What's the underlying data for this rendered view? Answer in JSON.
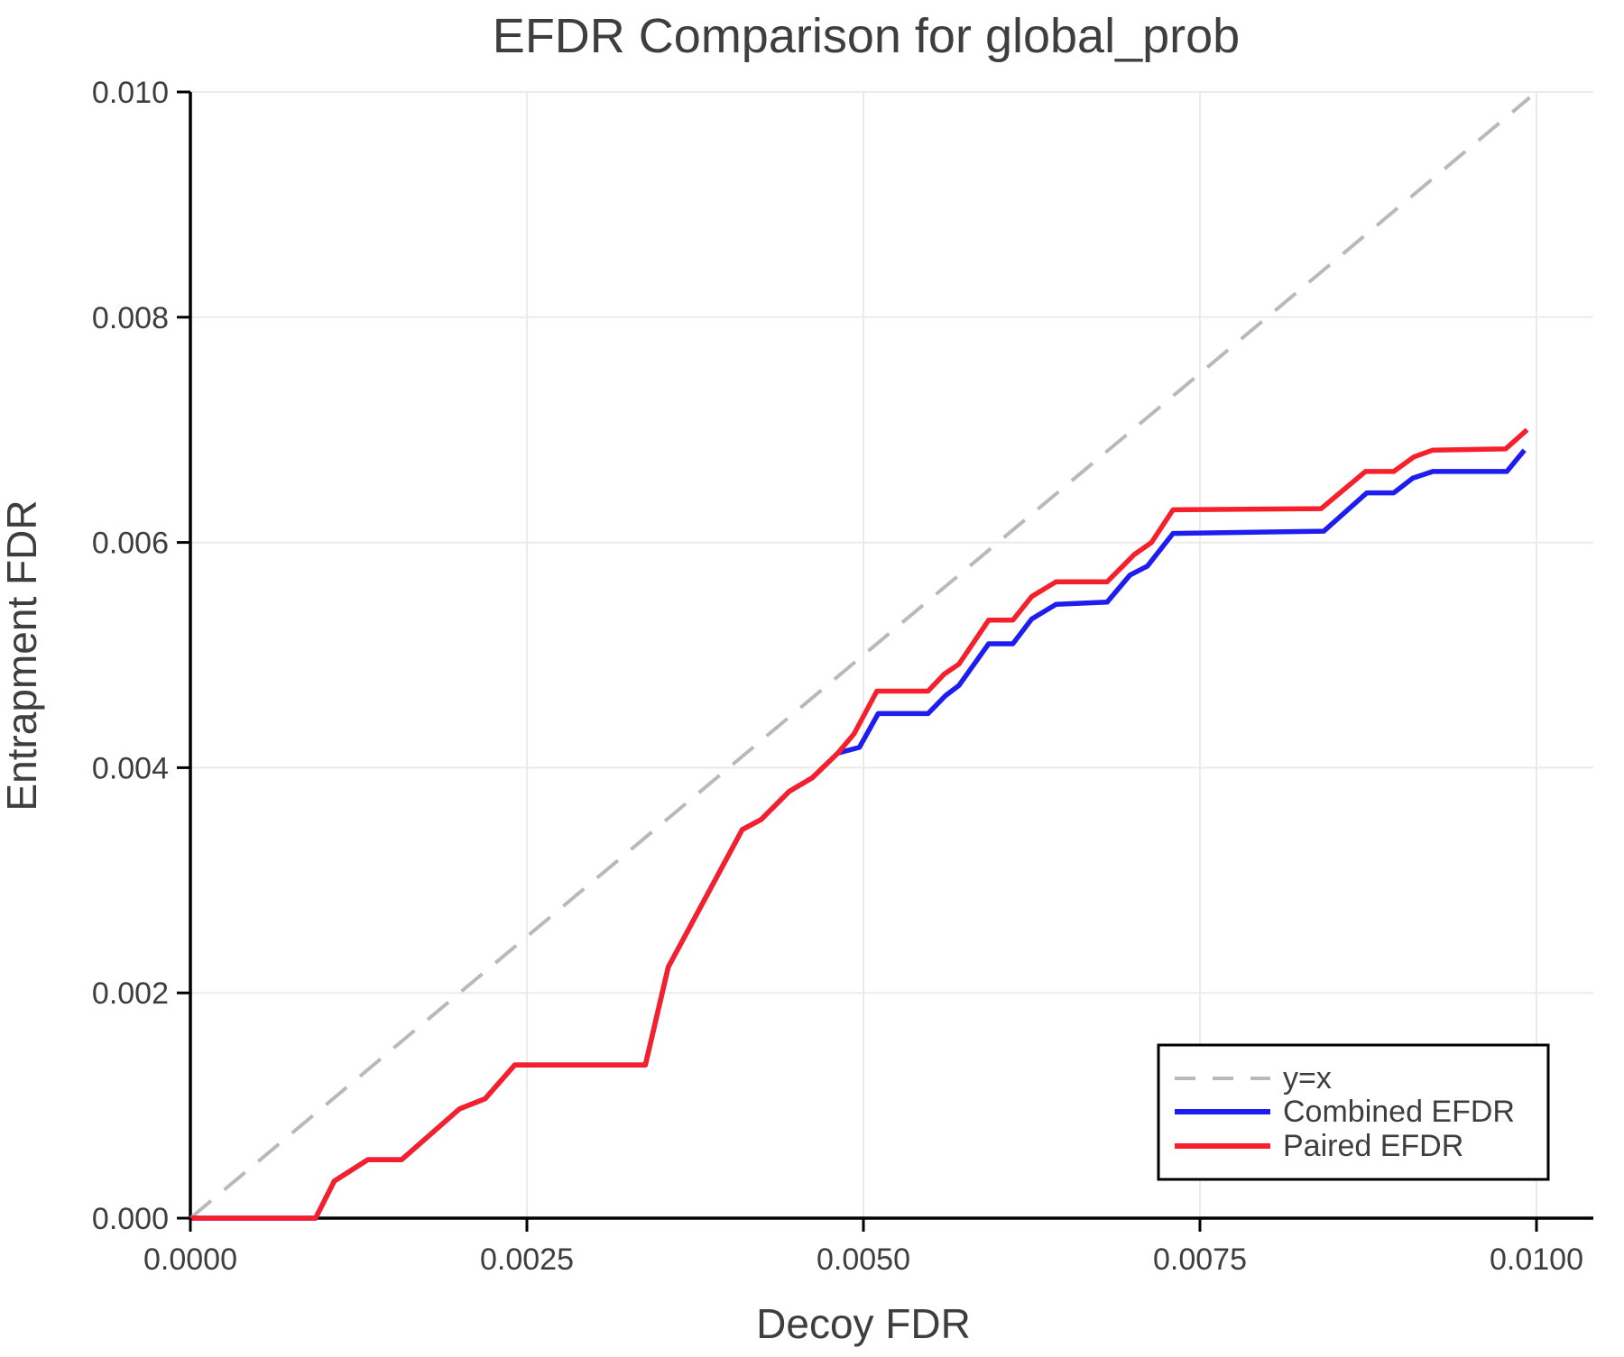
{
  "title": "EFDR Comparison for global_prob",
  "axes": {
    "x": {
      "label": "Decoy FDR",
      "ticks": [
        {
          "v": 0.0,
          "label": "0.0000"
        },
        {
          "v": 0.0025,
          "label": "0.0025"
        },
        {
          "v": 0.005,
          "label": "0.0050"
        },
        {
          "v": 0.0075,
          "label": "0.0075"
        },
        {
          "v": 0.01,
          "label": "0.0100"
        }
      ]
    },
    "y": {
      "label": "Entrapment FDR",
      "ticks": [
        {
          "v": 0.0,
          "label": "0.000"
        },
        {
          "v": 0.002,
          "label": "0.002"
        },
        {
          "v": 0.004,
          "label": "0.004"
        },
        {
          "v": 0.006,
          "label": "0.006"
        },
        {
          "v": 0.008,
          "label": "0.008"
        },
        {
          "v": 0.01,
          "label": "0.010"
        }
      ]
    }
  },
  "legend": {
    "entries": [
      {
        "label": "y=x",
        "series": "yx"
      },
      {
        "label": "Combined EFDR",
        "series": "combined"
      },
      {
        "label": "Paired EFDR",
        "series": "paired"
      }
    ]
  },
  "colors": {
    "grid": "#ebebeb",
    "spine": "#000000",
    "text": "#3e3e3e"
  },
  "chart_data": {
    "type": "line",
    "title": "EFDR Comparison for global_prob",
    "xlabel": "Decoy FDR",
    "ylabel": "Entrapment FDR",
    "xlim": [
      0,
      0.0104
    ],
    "ylim": [
      0,
      0.01
    ],
    "grid": true,
    "legend_position": "lower right",
    "series": [
      {
        "id": "yx",
        "name": "y=x",
        "color": "#b9b9b9",
        "style": "dashed",
        "points": [
          [
            0.0,
            0.0
          ],
          [
            0.00995,
            0.00995
          ]
        ]
      },
      {
        "id": "combined",
        "name": "Combined EFDR",
        "color": "#1d1df0",
        "style": "solid",
        "points": [
          [
            0.0,
            0.0
          ],
          [
            0.00093,
            0.0
          ],
          [
            0.00107,
            0.00033
          ],
          [
            0.00132,
            0.00052
          ],
          [
            0.00157,
            0.00052
          ],
          [
            0.002,
            0.00097
          ],
          [
            0.00219,
            0.00106
          ],
          [
            0.00241,
            0.00136
          ],
          [
            0.00338,
            0.00136
          ],
          [
            0.00355,
            0.00223
          ],
          [
            0.0041,
            0.00345
          ],
          [
            0.00424,
            0.00354
          ],
          [
            0.00445,
            0.00379
          ],
          [
            0.00462,
            0.00391
          ],
          [
            0.00481,
            0.00413
          ],
          [
            0.00497,
            0.00418
          ],
          [
            0.00511,
            0.00448
          ],
          [
            0.00548,
            0.00448
          ],
          [
            0.00561,
            0.00464
          ],
          [
            0.00571,
            0.00473
          ],
          [
            0.00593,
            0.0051
          ],
          [
            0.00611,
            0.0051
          ],
          [
            0.00625,
            0.00532
          ],
          [
            0.00643,
            0.00545
          ],
          [
            0.00681,
            0.00547
          ],
          [
            0.00698,
            0.00571
          ],
          [
            0.00711,
            0.00579
          ],
          [
            0.0073,
            0.00608
          ],
          [
            0.00842,
            0.0061
          ],
          [
            0.00874,
            0.00644
          ],
          [
            0.00894,
            0.00644
          ],
          [
            0.00908,
            0.00657
          ],
          [
            0.00923,
            0.00663
          ],
          [
            0.00978,
            0.00663
          ],
          [
            0.00991,
            0.00682
          ]
        ]
      },
      {
        "id": "paired",
        "name": "Paired EFDR",
        "color": "#f5202c",
        "style": "solid",
        "points": [
          [
            0.0,
            0.0
          ],
          [
            0.00093,
            0.0
          ],
          [
            0.00107,
            0.00033
          ],
          [
            0.00132,
            0.00052
          ],
          [
            0.00157,
            0.00052
          ],
          [
            0.002,
            0.00097
          ],
          [
            0.00219,
            0.00106
          ],
          [
            0.00241,
            0.00136
          ],
          [
            0.00338,
            0.00136
          ],
          [
            0.00355,
            0.00223
          ],
          [
            0.0041,
            0.00345
          ],
          [
            0.00424,
            0.00354
          ],
          [
            0.00445,
            0.00379
          ],
          [
            0.00462,
            0.00391
          ],
          [
            0.00481,
            0.00413
          ],
          [
            0.00493,
            0.0043
          ],
          [
            0.0051,
            0.00468
          ],
          [
            0.00548,
            0.00468
          ],
          [
            0.0056,
            0.00483
          ],
          [
            0.00571,
            0.00492
          ],
          [
            0.00593,
            0.00531
          ],
          [
            0.00611,
            0.00531
          ],
          [
            0.00625,
            0.00552
          ],
          [
            0.00643,
            0.00565
          ],
          [
            0.00681,
            0.00565
          ],
          [
            0.00701,
            0.00589
          ],
          [
            0.00714,
            0.006
          ],
          [
            0.0073,
            0.00629
          ],
          [
            0.0084,
            0.0063
          ],
          [
            0.00873,
            0.00663
          ],
          [
            0.00894,
            0.00663
          ],
          [
            0.00909,
            0.00676
          ],
          [
            0.00923,
            0.00682
          ],
          [
            0.00977,
            0.00683
          ],
          [
            0.00993,
            0.007
          ]
        ]
      }
    ]
  }
}
